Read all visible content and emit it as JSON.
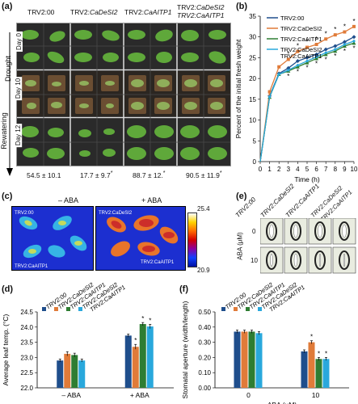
{
  "panel_labels": {
    "a": "(a)",
    "b": "(b)",
    "c": "(c)",
    "d": "(d)",
    "e": "(e)",
    "f": "(f)"
  },
  "panel_a": {
    "columns": [
      "TRV2:00",
      "TRV2:CaDeSI2",
      "TRV2:CaAITP1",
      "TRV2:CaDeSI2 TRV2:CaAITP1"
    ],
    "col_prefix": [
      "TRV2:",
      "TRV2:",
      "TRV2:",
      "TRV2:"
    ],
    "col_gene": [
      "00",
      "CaDeSI2",
      "CaAITP1",
      "CaDeSI2"
    ],
    "col_line2": "TRV2:CaAITP1",
    "rows": [
      "Day 0",
      "Day 10",
      "Day 12"
    ],
    "side_labels": [
      "Drought",
      "Rewatering"
    ],
    "survival": [
      "54.5 ± 10.1",
      "17.7 ± 9.7",
      "88.7 ± 12.",
      "90.5 ± 11.9"
    ],
    "survival_star": [
      "",
      "*",
      "*",
      "*"
    ]
  },
  "panel_c": {
    "left_title": "– ABA",
    "right_title": "+ ABA",
    "scale_max": "25.4",
    "scale_min": "20.9",
    "labels_tl": "TRV2:00",
    "labels_tr": "TRV2:CaDeSI2",
    "labels_bl": "TRV2:CaAITP1",
    "labels_br": "TRV2:CaAITP1"
  },
  "panel_e": {
    "columns": [
      "TRV2:00",
      "TRV2:CaDeSI2",
      "TRV2:CaAITP1",
      "TRV2:CaDeSI2 TRV2:CaAITP1"
    ],
    "ylabel": "ABA (μM)",
    "rows": [
      "0",
      "10"
    ]
  },
  "chart_data": [
    {
      "id": "b",
      "type": "line",
      "xlabel": "Time (h)",
      "ylabel": "Percent of the initial fresh weight",
      "xlim": [
        0,
        10
      ],
      "ylim": [
        0,
        35
      ],
      "xticks": [
        0,
        1,
        2,
        3,
        4,
        5,
        6,
        7,
        8,
        9,
        10
      ],
      "yticks": [
        0,
        5,
        10,
        15,
        20,
        25,
        30,
        35
      ],
      "legend_position": "top-left",
      "x": [
        1,
        2,
        3,
        4,
        5,
        6,
        7,
        8,
        9,
        10
      ],
      "series": [
        {
          "name": "TRV2:00",
          "color": "#1f4e8c",
          "values": [
            15.8,
            21.2,
            22.5,
            24.2,
            25.0,
            25.8,
            27.0,
            27.8,
            28.8,
            30.0
          ]
        },
        {
          "name": "TRV2:CaDeSI2",
          "color": "#e07b39",
          "values": [
            16.8,
            22.8,
            24.6,
            26.5,
            27.5,
            28.2,
            29.5,
            30.5,
            31.2,
            32.5
          ]
        },
        {
          "name": "TRV2:CaAITP1",
          "color": "#2e7d32",
          "values": [
            15.5,
            21.0,
            21.8,
            22.8,
            23.8,
            24.8,
            25.8,
            26.6,
            27.8,
            28.5
          ]
        },
        {
          "name": "TRV2:CaDeSI2 TRV2:CaAITP1",
          "color": "#29a8dc",
          "values": [
            15.6,
            21.0,
            22.0,
            23.2,
            24.2,
            25.2,
            26.2,
            27.0,
            28.2,
            29.0
          ]
        }
      ],
      "stars_top": [
        3,
        4,
        5,
        6,
        7,
        8,
        9,
        10
      ],
      "stars_bottom": [
        3,
        4,
        5,
        6,
        7,
        8,
        9,
        10
      ]
    },
    {
      "id": "d",
      "type": "bar",
      "ylabel": "Average leaf temp. (°C)",
      "ylim": [
        22.0,
        24.5
      ],
      "yticks": [
        "22.0",
        "22.5",
        "23.0",
        "23.5",
        "24.0",
        "24.5"
      ],
      "categories": [
        "– ABA",
        "+ ABA"
      ],
      "series": [
        {
          "name": "TRV2:00",
          "color": "#1f4e8c",
          "values": [
            22.9,
            23.72
          ]
        },
        {
          "name": "TRV2:CaDeSI2",
          "color": "#e07b39",
          "values": [
            23.12,
            23.35
          ]
        },
        {
          "name": "TRV2:CaAITP1",
          "color": "#2e7d32",
          "values": [
            23.08,
            24.1
          ]
        },
        {
          "name": "TRV2:CaDeSI2 TRV2:CaAITP1",
          "color": "#29a8dc",
          "values": [
            22.9,
            24.02
          ]
        }
      ],
      "errors": [
        [
          0.05,
          0.05
        ],
        [
          0.07,
          0.08
        ],
        [
          0.06,
          0.05
        ],
        [
          0.05,
          0.07
        ]
      ],
      "stars": [
        [
          false,
          false
        ],
        [
          false,
          true
        ],
        [
          false,
          true
        ],
        [
          false,
          true
        ]
      ]
    },
    {
      "id": "f",
      "type": "bar",
      "xlabel": "ABA (μM)",
      "ylabel": "Stomatal aperture (width/length)",
      "ylim": [
        0,
        0.5
      ],
      "yticks": [
        "0.00",
        "0.10",
        "0.20",
        "0.30",
        "0.40",
        "0.50"
      ],
      "categories": [
        "0",
        "10"
      ],
      "series": [
        {
          "name": "TRV2:00",
          "color": "#1f4e8c",
          "values": [
            0.37,
            0.24
          ]
        },
        {
          "name": "TRV2:CaDeSI2",
          "color": "#e07b39",
          "values": [
            0.37,
            0.3
          ]
        },
        {
          "name": "TRV2:CaAITP1",
          "color": "#2e7d32",
          "values": [
            0.37,
            0.19
          ]
        },
        {
          "name": "TRV2:CaDeSI2 TRV2:CaAITP1",
          "color": "#29a8dc",
          "values": [
            0.36,
            0.19
          ]
        }
      ],
      "errors": [
        [
          0.01,
          0.01
        ],
        [
          0.01,
          0.01
        ],
        [
          0.01,
          0.01
        ],
        [
          0.01,
          0.01
        ]
      ],
      "stars": [
        [
          false,
          false
        ],
        [
          false,
          true
        ],
        [
          false,
          true
        ],
        [
          false,
          true
        ]
      ]
    }
  ]
}
